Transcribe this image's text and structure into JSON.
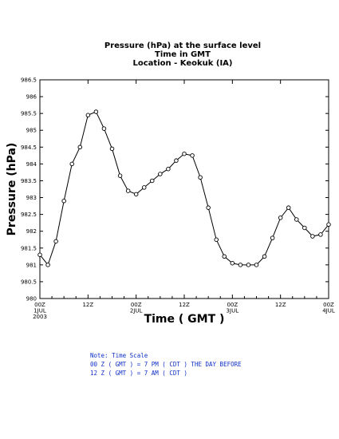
{
  "chart_data": {
    "type": "line",
    "title": [
      "Pressure (hPa) at the surface level",
      "Time in GMT",
      "Location - Keokuk (IA)"
    ],
    "xlabel": "Time ( GMT )",
    "ylabel": "Pressure (hPa)",
    "ylim": [
      980,
      986.5
    ],
    "yticks": [
      "980",
      "980.5",
      "981",
      "981.5",
      "982",
      "982.5",
      "983",
      "983.5",
      "984",
      "984.5",
      "985",
      "985.5",
      "986",
      "986.5"
    ],
    "xlim": [
      0,
      72
    ],
    "xticks": [
      {
        "t": 0,
        "lines": [
          "00Z",
          "1JUL",
          "2003"
        ]
      },
      {
        "t": 12,
        "lines": [
          "12Z"
        ]
      },
      {
        "t": 24,
        "lines": [
          "00Z",
          "2JUL"
        ]
      },
      {
        "t": 36,
        "lines": [
          "12Z"
        ]
      },
      {
        "t": 48,
        "lines": [
          "00Z",
          "3JUL"
        ]
      },
      {
        "t": 60,
        "lines": [
          "12Z"
        ]
      },
      {
        "t": 72,
        "lines": [
          "00Z",
          "4JUL"
        ]
      }
    ],
    "grid": false,
    "marker": "open-circle",
    "x": [
      0,
      2,
      4,
      6,
      8,
      10,
      12,
      14,
      16,
      18,
      20,
      22,
      24,
      26,
      28,
      30,
      32,
      34,
      36,
      38,
      40,
      42,
      44,
      46,
      48,
      50,
      52,
      54,
      56,
      58,
      60,
      62,
      64,
      66,
      68,
      70,
      72
    ],
    "values": [
      981.3,
      981.0,
      981.7,
      982.9,
      984.0,
      984.5,
      985.45,
      985.55,
      985.05,
      984.45,
      983.65,
      983.2,
      983.1,
      983.3,
      983.5,
      983.7,
      983.85,
      984.1,
      984.3,
      984.25,
      983.6,
      982.7,
      981.75,
      981.25,
      981.05,
      981.0,
      981.0,
      981.0,
      981.25,
      981.8,
      982.4,
      982.7,
      982.35,
      982.1,
      981.85,
      981.9,
      982.2
    ]
  },
  "note": {
    "lines": [
      "Note: Time Scale",
      "00 Z ( GMT ) = 7 PM ( CDT ) THE DAY BEFORE",
      "12 Z ( GMT ) = 7 AM ( CDT )"
    ]
  }
}
